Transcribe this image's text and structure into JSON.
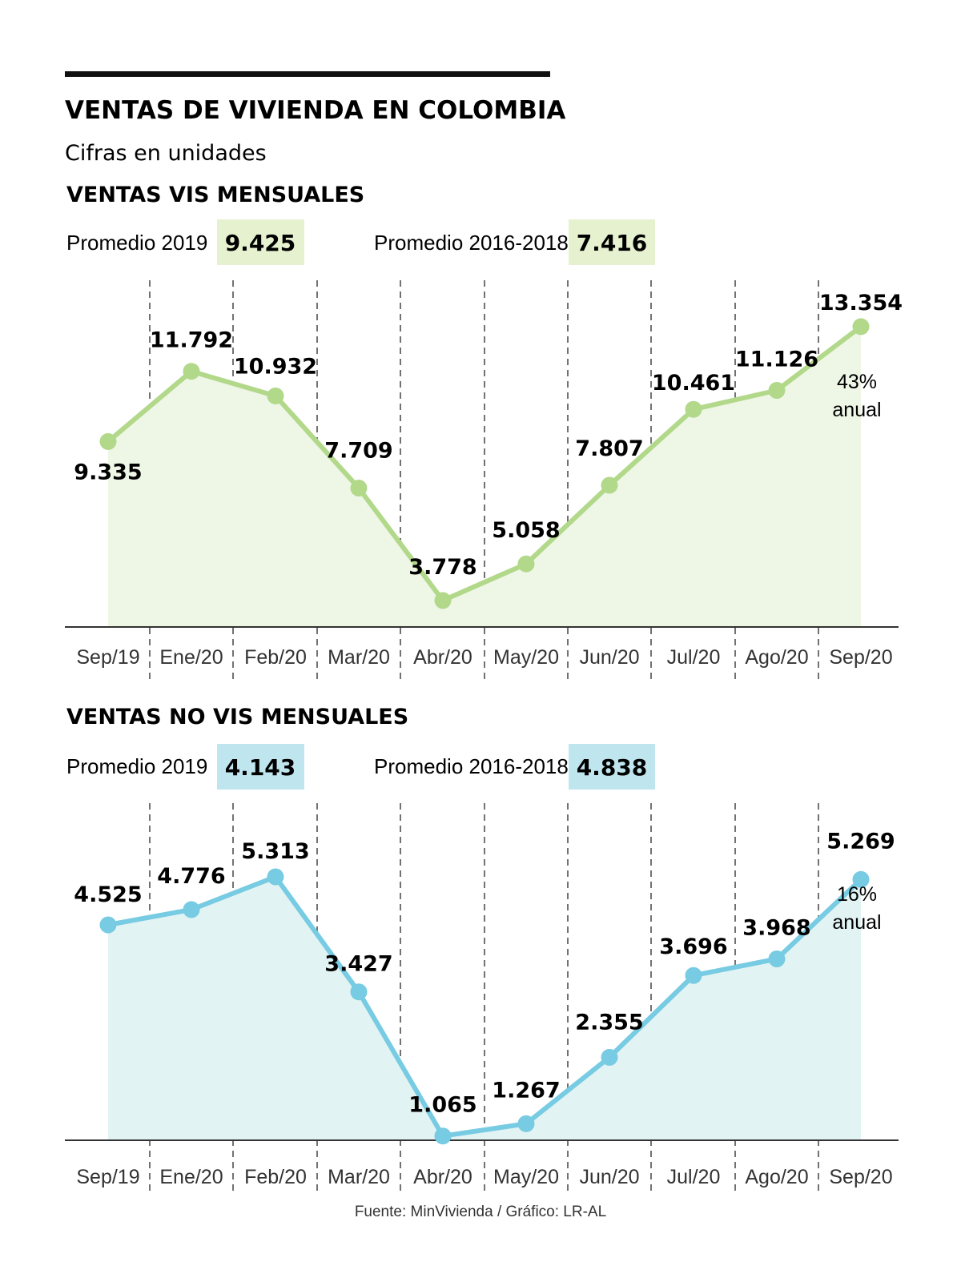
{
  "title": "VENTAS DE VIVIENDA EN COLOMBIA",
  "subtitle": "Cifras en unidades",
  "source": "Fuente: MinVivienda / Gráfico: LR-AL",
  "colors": {
    "vis_line": "#b2d88a",
    "vis_fill": "#eef6e6",
    "vis_badge": "#e5f1cf",
    "novis_line": "#77cbe2",
    "novis_fill": "#e2f3f3",
    "novis_badge": "#bfe5ee"
  },
  "chart_data": [
    {
      "type": "area",
      "title": "VENTAS VIS MENSUALES",
      "categories": [
        "Sep/19",
        "Ene/20",
        "Feb/20",
        "Mar/20",
        "Abr/20",
        "May/20",
        "Jun/20",
        "Jul/20",
        "Ago/20",
        "Sep/20"
      ],
      "values": [
        9335,
        11792,
        10932,
        7709,
        3778,
        5058,
        7807,
        10461,
        11126,
        13354
      ],
      "value_labels": [
        "9.335",
        "11.792",
        "10.932",
        "7.709",
        "3.778",
        "5.058",
        "7.807",
        "10.461",
        "11.126",
        "13.354"
      ],
      "averages": [
        {
          "label": "Promedio 2019",
          "value": "9.425"
        },
        {
          "label": "Promedio 2016-2018",
          "value": "7.416"
        }
      ],
      "annotation": {
        "line1": "43%",
        "line2": "anual"
      },
      "ylim": [
        2850,
        15200
      ],
      "grid": "vertical-dashed"
    },
    {
      "type": "area",
      "title": "VENTAS NO VIS MENSUALES",
      "categories": [
        "Sep/19",
        "Ene/20",
        "Feb/20",
        "Mar/20",
        "Abr/20",
        "May/20",
        "Jun/20",
        "Jul/20",
        "Ago/20",
        "Sep/20"
      ],
      "values": [
        4525,
        4776,
        5313,
        3427,
        1065,
        1267,
        2355,
        3696,
        3968,
        5269
      ],
      "value_labels": [
        "4.525",
        "4.776",
        "5.313",
        "3.427",
        "1.065",
        "1.267",
        "2.355",
        "3.696",
        "3.968",
        "5.269"
      ],
      "averages": [
        {
          "label": "Promedio 2019",
          "value": "4.143"
        },
        {
          "label": "Promedio 2016-2018",
          "value": "4.838"
        }
      ],
      "annotation": {
        "line1": "16%",
        "line2": "anual"
      },
      "ylim": [
        995,
        6520
      ],
      "grid": "vertical-dashed"
    }
  ]
}
